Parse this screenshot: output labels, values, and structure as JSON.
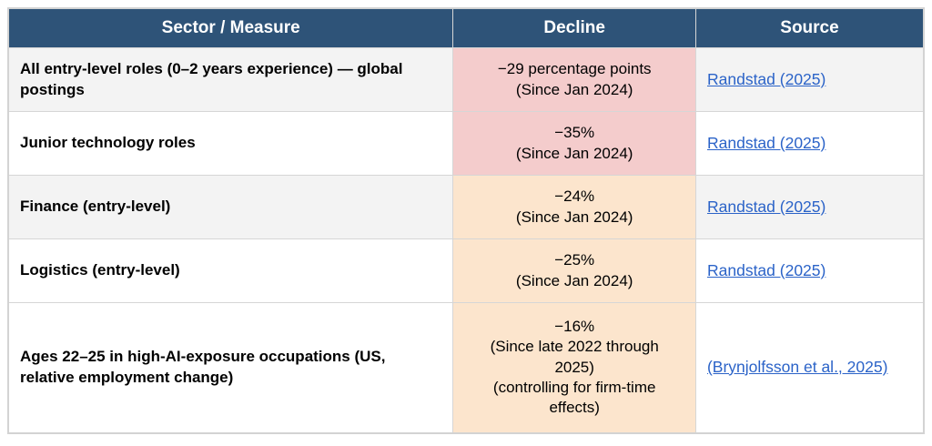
{
  "colors": {
    "header_bg": "#2e5378",
    "header_text": "#ffffff",
    "link_blue": "#2b63c8",
    "pink_highlight": "#f4cccc",
    "orange_highlight": "#fce5cd",
    "zebra_gray": "#f3f3f3",
    "border_gray": "#d6d6d6"
  },
  "table": {
    "header": {
      "columns": [
        "Sector / Measure",
        "Decline",
        "Source"
      ]
    },
    "rows": [
      {
        "sector": "All entry-level roles (0–2 years experience) — global postings",
        "decline_lines": [
          "−29 percentage points",
          "(Since Jan 2024)"
        ],
        "source": "Randstad (2025)",
        "row_bg": "#f3f3f3",
        "decline_bg": "#f4cccc"
      },
      {
        "sector": "Junior technology roles",
        "decline_lines": [
          "−35%",
          "(Since Jan 2024)"
        ],
        "source": "Randstad (2025)",
        "row_bg": "#ffffff",
        "decline_bg": "#f4cccc"
      },
      {
        "sector": "Finance (entry-level)",
        "decline_lines": [
          "−24%",
          "(Since Jan 2024)"
        ],
        "source": "Randstad (2025)",
        "row_bg": "#f3f3f3",
        "decline_bg": "#fce5cd"
      },
      {
        "sector": "Logistics (entry-level)",
        "decline_lines": [
          "−25%",
          "(Since Jan 2024)"
        ],
        "source": "Randstad (2025)",
        "row_bg": "#ffffff",
        "decline_bg": "#fce5cd"
      },
      {
        "sector": "Ages 22–25 in high-AI-exposure occupations (US, relative employment change)",
        "decline_lines": [
          "−16%",
          "(Since late 2022 through 2025)",
          "(controlling for firm-time effects)"
        ],
        "source": "(Brynjolfsson et al., 2025)",
        "row_bg": "#ffffff",
        "decline_bg": "#fce5cd"
      }
    ]
  },
  "chart_data": {
    "type": "table",
    "title": "",
    "columns": [
      "Sector / Measure",
      "Decline",
      "Source"
    ],
    "rows": [
      [
        "All entry-level roles (0–2 years experience) — global postings",
        "−29 percentage points (Since Jan 2024)",
        "Randstad (2025)"
      ],
      [
        "Junior technology roles",
        "−35% (Since Jan 2024)",
        "Randstad (2025)"
      ],
      [
        "Finance (entry-level)",
        "−24% (Since Jan 2024)",
        "Randstad (2025)"
      ],
      [
        "Logistics (entry-level)",
        "−25% (Since Jan 2024)",
        "Randstad (2025)"
      ],
      [
        "Ages 22–25 in high-AI-exposure occupations (US, relative employment change)",
        "−16% (Since late 2022 through 2025) (controlling for firm-time effects)",
        "(Brynjolfsson et al., 2025)"
      ]
    ],
    "decline_values": [
      -29,
      -35,
      -24,
      -25,
      -16
    ],
    "decline_units": [
      "percentage points",
      "%",
      "%",
      "%",
      "%"
    ]
  }
}
